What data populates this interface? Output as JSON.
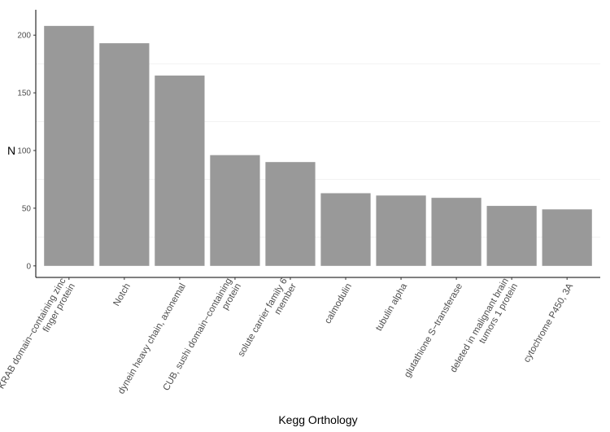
{
  "chart_data": {
    "type": "bar",
    "categories": [
      [
        "KRAB domain−containing zinc",
        "finger protein"
      ],
      [
        "Notch"
      ],
      [
        "dynein heavy chain, axonemal"
      ],
      [
        "CUB, sushi domain−containing",
        "protein"
      ],
      [
        "solute carrier family 6",
        "member"
      ],
      [
        "calmodulin"
      ],
      [
        "tubulin alpha"
      ],
      [
        "glutathione S−transferase"
      ],
      [
        "deleted in malignant brain",
        "tumors 1 protein"
      ],
      [
        "cytochrome P450, 3A"
      ]
    ],
    "values": [
      208,
      193,
      165,
      96,
      90,
      63,
      61,
      59,
      52,
      49
    ],
    "xlabel": "Kegg Orthology",
    "ylabel": "N",
    "ylim": [
      -10,
      222
    ],
    "yticks": [
      0,
      50,
      100,
      150,
      200
    ],
    "bar_color": "#999999",
    "grid": "minor horizontal only, very light",
    "legend": "none"
  }
}
